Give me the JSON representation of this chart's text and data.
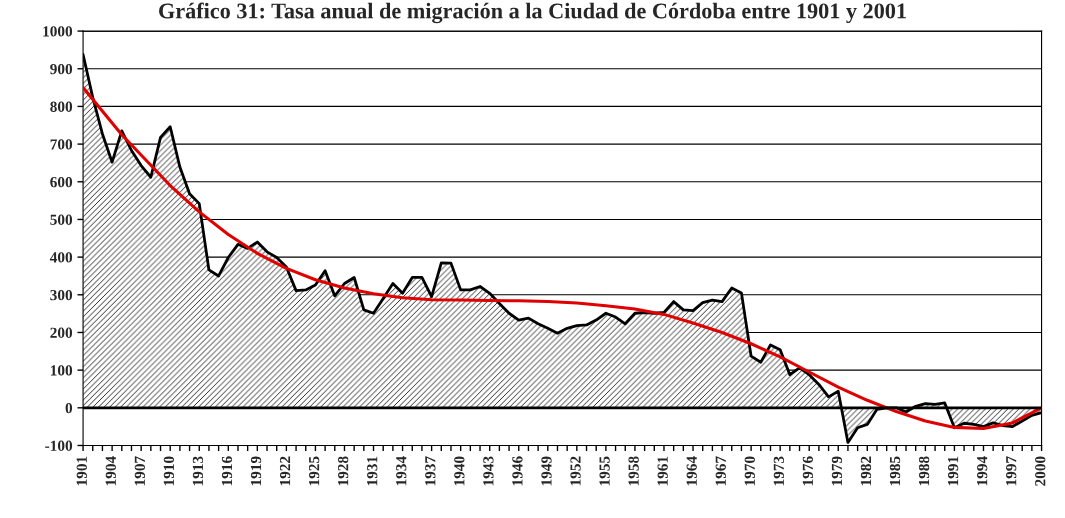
{
  "chart_data": {
    "type": "area",
    "title": "Gráfico 31: Tasa anual de migración a la Ciudad de Córdoba entre 1901 y 2001",
    "x": [
      1901,
      1902,
      1903,
      1904,
      1905,
      1906,
      1907,
      1908,
      1909,
      1910,
      1911,
      1912,
      1913,
      1914,
      1915,
      1916,
      1917,
      1918,
      1919,
      1920,
      1921,
      1922,
      1923,
      1924,
      1925,
      1926,
      1927,
      1928,
      1929,
      1930,
      1931,
      1932,
      1933,
      1934,
      1935,
      1936,
      1937,
      1938,
      1939,
      1940,
      1941,
      1942,
      1943,
      1944,
      1945,
      1946,
      1947,
      1948,
      1949,
      1950,
      1951,
      1952,
      1953,
      1954,
      1955,
      1956,
      1957,
      1958,
      1959,
      1960,
      1961,
      1962,
      1963,
      1964,
      1965,
      1966,
      1967,
      1968,
      1969,
      1970,
      1971,
      1972,
      1973,
      1974,
      1975,
      1976,
      1977,
      1978,
      1979,
      1980,
      1981,
      1982,
      1983,
      1984,
      1985,
      1986,
      1987,
      1988,
      1989,
      1990,
      1991,
      1992,
      1993,
      1994,
      1995,
      1996,
      1997,
      1998,
      1999,
      2000
    ],
    "series": [
      {
        "color": "#000000",
        "values": [
          938,
          824,
          727,
          652,
          735,
          683,
          643,
          612,
          718,
          746,
          639,
          568,
          542,
          366,
          350,
          399,
          434,
          423,
          440,
          414,
          399,
          374,
          311,
          313,
          326,
          364,
          297,
          330,
          346,
          260,
          251,
          290,
          330,
          304,
          346,
          346,
          295,
          385,
          384,
          313,
          313,
          322,
          304,
          277,
          251,
          233,
          238,
          223,
          211,
          198,
          211,
          218,
          220,
          233,
          251,
          241,
          223,
          251,
          253,
          251,
          253,
          282,
          260,
          258,
          279,
          286,
          282,
          318,
          305,
          137,
          121,
          167,
          154,
          88,
          106,
          88,
          62,
          29,
          44,
          -92,
          -53,
          -44,
          -4,
          0,
          0,
          -11,
          4,
          11,
          9,
          13,
          -53,
          -41,
          -44,
          -50,
          -40,
          -47,
          -50,
          -35,
          -20,
          -13
        ]
      },
      {
        "type": "line",
        "color": "#e00000",
        "x": [
          1901,
          1905,
          1910,
          1913,
          1916,
          1919,
          1922,
          1925,
          1928,
          1931,
          1934,
          1937,
          1940,
          1943,
          1946,
          1949,
          1952,
          1955,
          1958,
          1961,
          1964,
          1967,
          1970,
          1973,
          1976,
          1979,
          1982,
          1985,
          1988,
          1991,
          1994,
          1997,
          2000
        ],
        "values": [
          850,
          725,
          590,
          520,
          460,
          410,
          370,
          340,
          318,
          303,
          292,
          287,
          286,
          285,
          284,
          282,
          278,
          271,
          262,
          248,
          225,
          200,
          170,
          135,
          95,
          55,
          20,
          -10,
          -35,
          -52,
          -55,
          -40,
          0
        ]
      }
    ],
    "xlim": [
      1901,
      2000
    ],
    "xticks": [
      1901,
      {
        "value": 1902,
        "label": null
      },
      {
        "value": 1903,
        "label": null
      },
      1904,
      {
        "value": 1905,
        "label": null
      },
      {
        "value": 1906,
        "label": null
      },
      1907,
      {
        "value": 1908,
        "label": null
      },
      {
        "value": 1909,
        "label": null
      },
      1910,
      {
        "value": 1911,
        "label": null
      },
      {
        "value": 1912,
        "label": null
      },
      1913,
      {
        "value": 1914,
        "label": null
      },
      {
        "value": 1915,
        "label": null
      },
      1916,
      {
        "value": 1917,
        "label": null
      },
      {
        "value": 1918,
        "label": null
      },
      1919,
      {
        "value": 1920,
        "label": null
      },
      {
        "value": 1921,
        "label": null
      },
      1922,
      {
        "value": 1923,
        "label": null
      },
      {
        "value": 1924,
        "label": null
      },
      1925,
      {
        "value": 1926,
        "label": null
      },
      {
        "value": 1927,
        "label": null
      },
      1928,
      {
        "value": 1929,
        "label": null
      },
      {
        "value": 1930,
        "label": null
      },
      1931,
      {
        "value": 1932,
        "label": null
      },
      {
        "value": 1933,
        "label": null
      },
      1934,
      {
        "value": 1935,
        "label": null
      },
      {
        "value": 1936,
        "label": null
      },
      1937,
      {
        "value": 1938,
        "label": null
      },
      {
        "value": 1939,
        "label": null
      },
      1940,
      {
        "value": 1941,
        "label": null
      },
      {
        "value": 1942,
        "label": null
      },
      1943,
      {
        "value": 1944,
        "label": null
      },
      {
        "value": 1945,
        "label": null
      },
      1946,
      {
        "value": 1947,
        "label": null
      },
      {
        "value": 1948,
        "label": null
      },
      1949,
      {
        "value": 1950,
        "label": null
      },
      {
        "value": 1951,
        "label": null
      },
      1952,
      {
        "value": 1953,
        "label": null
      },
      {
        "value": 1954,
        "label": null
      },
      1955,
      {
        "value": 1956,
        "label": null
      },
      {
        "value": 1957,
        "label": null
      },
      1958,
      {
        "value": 1959,
        "label": null
      },
      {
        "value": 1960,
        "label": null
      },
      1961,
      {
        "value": 1962,
        "label": null
      },
      {
        "value": 1963,
        "label": null
      },
      1964,
      {
        "value": 1965,
        "label": null
      },
      {
        "value": 1966,
        "label": null
      },
      1967,
      {
        "value": 1968,
        "label": null
      },
      {
        "value": 1969,
        "label": null
      },
      1970,
      {
        "value": 1971,
        "label": null
      },
      {
        "value": 1972,
        "label": null
      },
      1973,
      {
        "value": 1974,
        "label": null
      },
      {
        "value": 1975,
        "label": null
      },
      1976,
      {
        "value": 1977,
        "label": null
      },
      {
        "value": 1978,
        "label": null
      },
      1979,
      {
        "value": 1980,
        "label": null
      },
      {
        "value": 1981,
        "label": null
      },
      1982,
      {
        "value": 1983,
        "label": null
      },
      {
        "value": 1984,
        "label": null
      },
      1985,
      {
        "value": 1986,
        "label": null
      },
      {
        "value": 1987,
        "label": null
      },
      1988,
      {
        "value": 1989,
        "label": null
      },
      {
        "value": 1990,
        "label": null
      },
      1991,
      {
        "value": 1992,
        "label": null
      },
      {
        "value": 1993,
        "label": null
      },
      1994,
      {
        "value": 1995,
        "label": null
      },
      {
        "value": 1996,
        "label": null
      },
      1997,
      {
        "value": 1998,
        "label": null
      },
      {
        "value": 1999,
        "label": null
      },
      2000
    ],
    "ylim": [
      -100,
      1000
    ],
    "yticks": [
      -100,
      0,
      100,
      200,
      300,
      400,
      500,
      600,
      700,
      800,
      900,
      1000
    ],
    "grid": "y",
    "legend": false
  }
}
